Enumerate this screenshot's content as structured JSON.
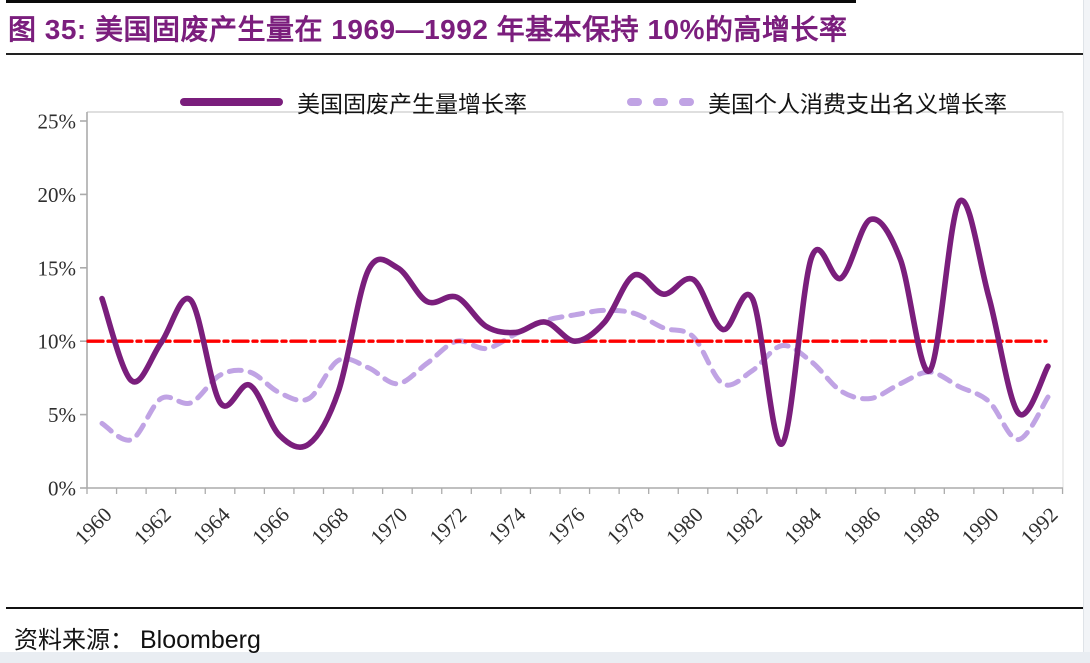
{
  "header": {
    "title": "图 35:  美国固废产生量在 1969—1992 年基本保持 10%的高增长率"
  },
  "source": {
    "prefix": "资料来源：",
    "name": "Bloomberg"
  },
  "colors": {
    "title_purple": "#7b1e7d",
    "series_solid": "#7a1e7c",
    "series_dashed": "#c0a3e4",
    "reference_red": "#fe0000",
    "axis_gray": "#ababab",
    "tick_text": "#2e2e2e"
  },
  "chart_data": {
    "type": "line",
    "title": "图 35: 美国固废产生量在 1969—1992 年基本保持 10%的高增长率",
    "xlabel": "",
    "ylabel": "",
    "ylim": [
      0,
      25
    ],
    "grid": false,
    "legend_position": "top",
    "x": [
      1960,
      1961,
      1962,
      1963,
      1964,
      1965,
      1966,
      1967,
      1968,
      1969,
      1970,
      1971,
      1972,
      1973,
      1974,
      1975,
      1976,
      1977,
      1978,
      1979,
      1980,
      1981,
      1982,
      1983,
      1984,
      1985,
      1986,
      1987,
      1988,
      1989,
      1990,
      1991,
      1992
    ],
    "xtick_labels": [
      "1960",
      "1962",
      "1964",
      "1966",
      "1968",
      "1970",
      "1972",
      "1974",
      "1976",
      "1978",
      "1980",
      "1982",
      "1984",
      "1986",
      "1988",
      "1990",
      "1992"
    ],
    "ytick_values": [
      25,
      20,
      15,
      10,
      5,
      0
    ],
    "ytick_labels": [
      "25%",
      "20%",
      "15%",
      "10%",
      "5%",
      "0%"
    ],
    "series": [
      {
        "name": "美国固废产生量增长率",
        "style": "solid",
        "color": "#7a1e7c",
        "values": [
          12.9,
          7.3,
          9.9,
          12.8,
          5.8,
          7.0,
          3.6,
          3.0,
          6.6,
          14.8,
          15.0,
          12.7,
          13.0,
          11.0,
          10.6,
          11.3,
          10.0,
          11.3,
          14.5,
          13.2,
          14.2,
          10.8,
          12.9,
          3.0,
          15.7,
          14.3,
          18.3,
          15.6,
          8.0,
          19.5,
          13.0,
          5.1,
          8.3
        ]
      },
      {
        "name": "美国个人消费支出名义增长率",
        "style": "dashed",
        "color": "#c0a3e4",
        "values": [
          4.4,
          3.3,
          6.1,
          5.8,
          7.7,
          7.9,
          6.5,
          6.1,
          8.7,
          8.2,
          7.1,
          8.5,
          10.0,
          9.5,
          10.5,
          11.4,
          11.8,
          12.1,
          11.9,
          10.9,
          10.3,
          7.1,
          8.0,
          9.7,
          8.6,
          6.6,
          6.1,
          7.1,
          7.9,
          6.9,
          5.9,
          3.3,
          6.2
        ]
      }
    ],
    "reference_line": {
      "value": 10,
      "color": "#fe0000",
      "style": "dash-dot",
      "label": "10%"
    }
  }
}
